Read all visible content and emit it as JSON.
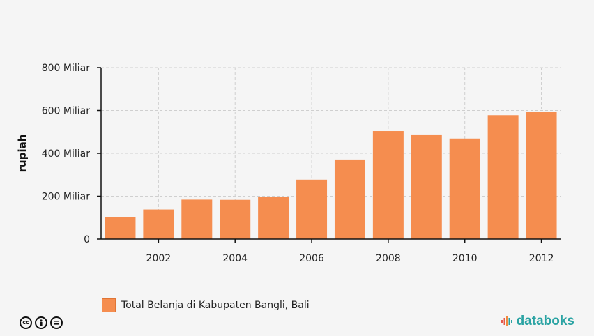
{
  "chart_data": {
    "type": "bar",
    "x": [
      2001,
      2002,
      2003,
      2004,
      2005,
      2006,
      2007,
      2008,
      2009,
      2010,
      2011,
      2012
    ],
    "values": [
      102,
      138,
      184,
      183,
      197,
      277,
      371,
      504,
      488,
      469,
      578,
      594
    ],
    "series_name": "Total Belanja di Kabupaten Bangli, Bali",
    "ylabel": "rupiah",
    "ylim": [
      0,
      800
    ],
    "yticks": [
      0,
      200,
      400,
      600,
      800
    ],
    "ytick_labels": [
      "0",
      "200 Miliar",
      "400 Miliar",
      "600 Miliar",
      "800 Miliar"
    ],
    "xticks": [
      2002,
      2004,
      2006,
      2008,
      2010,
      2012
    ],
    "xtick_labels": [
      "2002",
      "2004",
      "2006",
      "2008",
      "2010",
      "2012"
    ],
    "grid": true,
    "legend_position": "bottom-left",
    "bar_color": "#f58d4f"
  },
  "legend": {
    "label": "Total Belanja di Kabupaten Bangli, Bali"
  },
  "brand": {
    "name": "databoks",
    "color": "#2aa3a3"
  },
  "license_icons": [
    "cc-icon",
    "attribution-icon",
    "no-derivatives-icon"
  ]
}
